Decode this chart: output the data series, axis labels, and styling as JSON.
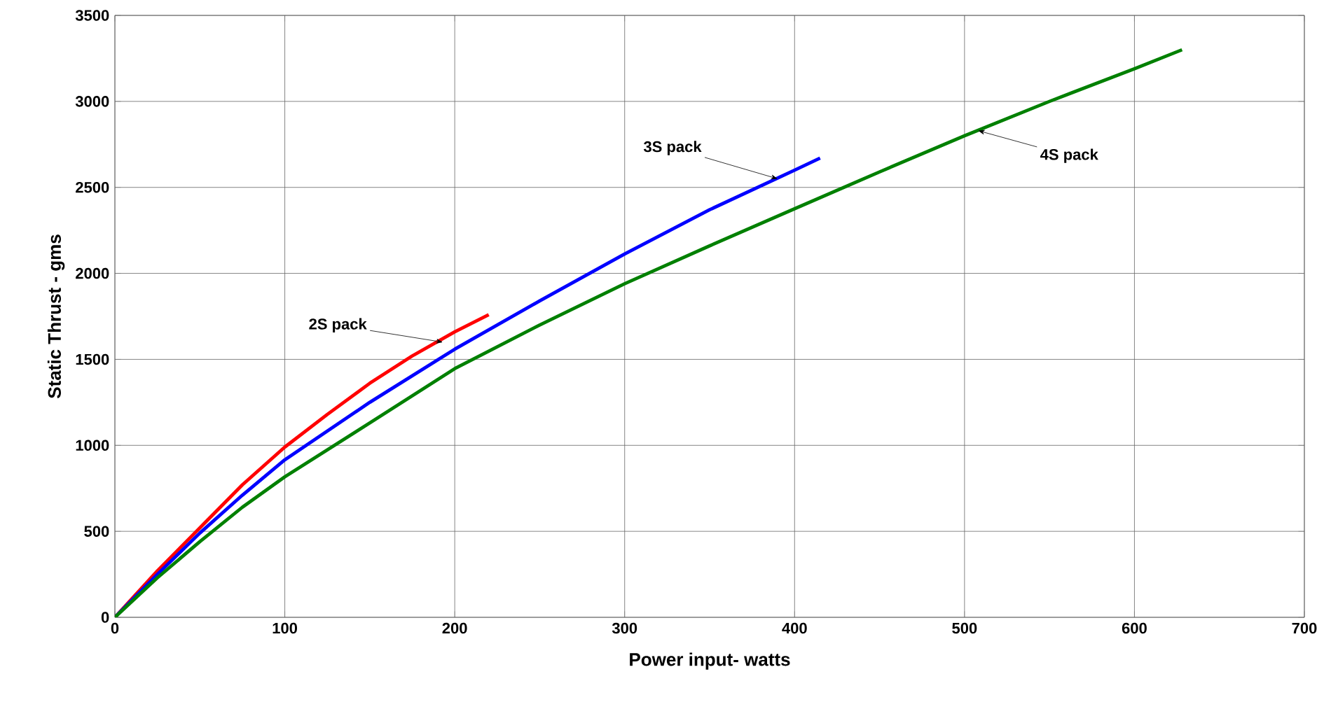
{
  "chart_data": {
    "type": "line",
    "xlabel": "Power input- watts",
    "ylabel": "Static Thrust - gms",
    "xlim": [
      0,
      700
    ],
    "ylim": [
      0,
      3500
    ],
    "xticks": [
      0,
      100,
      200,
      300,
      400,
      500,
      600,
      700
    ],
    "yticks": [
      0,
      500,
      1000,
      1500,
      2000,
      2500,
      3000,
      3500
    ],
    "grid": true,
    "legend": false,
    "marker": "none",
    "line_style": "solid",
    "series": [
      {
        "color": "#ff0000",
        "x": [
          0,
          25,
          50,
          75,
          100,
          125,
          150,
          175,
          200,
          220
        ],
        "values": [
          0,
          270,
          520,
          770,
          990,
          1180,
          1361,
          1520,
          1660,
          1760
        ]
      },
      {
        "color": "#0000ff",
        "x": [
          0,
          25,
          50,
          75,
          100,
          150,
          200,
          250,
          300,
          350,
          400,
          415
        ],
        "values": [
          0,
          250,
          490,
          710,
          916,
          1250,
          1559,
          1840,
          2113,
          2370,
          2600,
          2670
        ]
      },
      {
        "color": "#008000",
        "x": [
          0,
          25,
          50,
          75,
          100,
          150,
          200,
          250,
          300,
          350,
          400,
          450,
          500,
          550,
          600,
          628
        ],
        "values": [
          0,
          230,
          440,
          640,
          817,
          1130,
          1446,
          1700,
          1940,
          2160,
          2376,
          2590,
          2800,
          3000,
          3190,
          3300
        ]
      }
    ],
    "annotations": [
      {
        "text": "2S pack",
        "x": 193,
        "y": 1600
      },
      {
        "text": "3S pack",
        "x": 390,
        "y": 2550
      },
      {
        "text": "4S pack",
        "x": 508,
        "y": 2830
      }
    ]
  }
}
